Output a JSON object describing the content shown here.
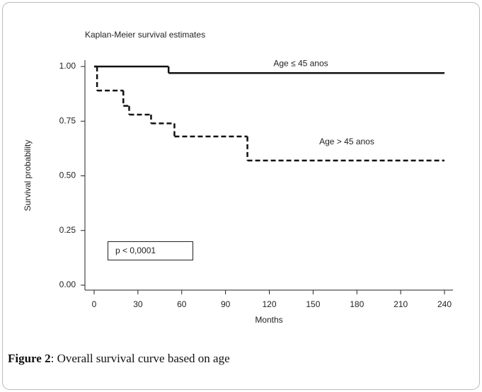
{
  "chart_data": {
    "type": "step",
    "title": "Kaplan-Meier survival estimates",
    "x_label": "Months",
    "y_label": "Survival probability",
    "x": [],
    "series": [
      {
        "name": "Age ≤ 45 anos",
        "color": "#111111",
        "dash": "solid",
        "x": [
          0,
          51,
          240
        ],
        "values": [
          1.0,
          0.97,
          0.97
        ]
      },
      {
        "name": "Age > 45 anos",
        "color": "#111111",
        "dash": "dashed",
        "x": [
          0,
          2,
          20,
          24,
          39,
          55,
          105,
          240
        ],
        "values": [
          1.0,
          0.89,
          0.82,
          0.78,
          0.74,
          0.68,
          0.57,
          0.57
        ]
      }
    ],
    "annotations": [
      "p < 0,0001"
    ],
    "xlim": [
      0,
      240
    ],
    "xticks": [
      0,
      30,
      60,
      90,
      120,
      150,
      180,
      210,
      240
    ],
    "ylim": [
      0,
      1
    ],
    "yticks": [
      {
        "value": 0,
        "label": "0.00"
      },
      {
        "value": 0.25,
        "label": "0.25"
      },
      {
        "value": 0.5,
        "label": "0.50"
      },
      {
        "value": 0.75,
        "label": "0.75"
      },
      {
        "value": 1,
        "label": "1.00"
      }
    ]
  },
  "caption": {
    "label": "Figure 2",
    "text": ": Overall survival curve based on age"
  }
}
